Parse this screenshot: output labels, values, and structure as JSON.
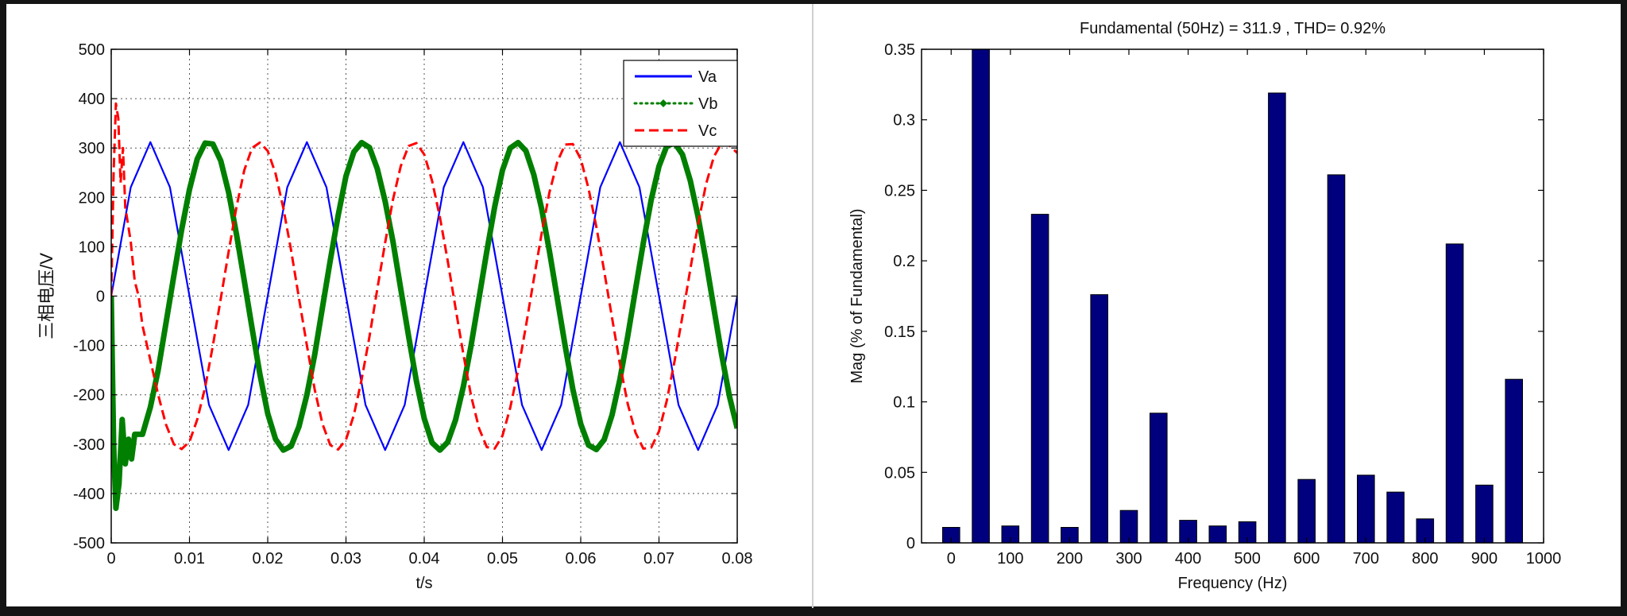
{
  "chart_data": [
    {
      "type": "line",
      "title": "",
      "xlabel": "t/s",
      "ylabel": "三相电压/V",
      "xlim": [
        0,
        0.08
      ],
      "ylim": [
        -500,
        500
      ],
      "xticks": [
        0,
        0.01,
        0.02,
        0.03,
        0.04,
        0.05,
        0.06,
        0.07,
        0.08
      ],
      "xtick_labels": [
        "0",
        "0.01",
        "0.02",
        "0.03",
        "0.04",
        "0.05",
        "0.06",
        "0.07",
        "0.08"
      ],
      "yticks": [
        -500,
        -400,
        -300,
        -200,
        -100,
        0,
        100,
        200,
        300,
        400,
        500
      ],
      "ytick_labels": [
        "-500",
        "-400",
        "-300",
        "-200",
        "-100",
        "0",
        "100",
        "200",
        "300",
        "400",
        "500"
      ],
      "grid": true,
      "legend_position": "top-right",
      "series": [
        {
          "name": "Va",
          "color": "#0000ff",
          "style": "solid",
          "x": [
            0,
            0.0025,
            0.005,
            0.0075,
            0.01,
            0.0125,
            0.015,
            0.0175,
            0.02,
            0.0225,
            0.025,
            0.0275,
            0.03,
            0.0325,
            0.035,
            0.0375,
            0.04,
            0.0425,
            0.045,
            0.0475,
            0.05,
            0.0525,
            0.055,
            0.0575,
            0.06,
            0.0625,
            0.065,
            0.0675,
            0.07,
            0.0725,
            0.075,
            0.0775,
            0.08
          ],
          "y": [
            0,
            220.5,
            311.9,
            220.5,
            0,
            -220.5,
            -311.9,
            -220.5,
            0,
            220.5,
            311.9,
            220.5,
            0,
            -220.5,
            -311.9,
            -220.5,
            0,
            220.5,
            311.9,
            220.5,
            0,
            -220.5,
            -311.9,
            -220.5,
            0,
            220.5,
            311.9,
            220.5,
            0,
            -220.5,
            -311.9,
            -220.5,
            0
          ]
        },
        {
          "name": "Vb",
          "color": "#007f00",
          "style": "dotted",
          "x": [
            0,
            0.0003,
            0.0006,
            0.001,
            0.0014,
            0.0018,
            0.0022,
            0.0026,
            0.003,
            0.004,
            0.005,
            0.006,
            0.007,
            0.008,
            0.009,
            0.01,
            0.011,
            0.012,
            0.013,
            0.014,
            0.015,
            0.016,
            0.017,
            0.018,
            0.019,
            0.02,
            0.021,
            0.022,
            0.023,
            0.024,
            0.025,
            0.026,
            0.027,
            0.028,
            0.029,
            0.03,
            0.031,
            0.032,
            0.033,
            0.034,
            0.035,
            0.036,
            0.037,
            0.038,
            0.039,
            0.04,
            0.041,
            0.042,
            0.043,
            0.044,
            0.045,
            0.046,
            0.047,
            0.048,
            0.049,
            0.05,
            0.051,
            0.052,
            0.053,
            0.054,
            0.055,
            0.056,
            0.057,
            0.058,
            0.059,
            0.06,
            0.061,
            0.062,
            0.063,
            0.064,
            0.065,
            0.066,
            0.067,
            0.068,
            0.069,
            0.07,
            0.071,
            0.072,
            0.073,
            0.074,
            0.075,
            0.076,
            0.077,
            0.078,
            0.079,
            0.08
          ],
          "y": [
            0,
            -300,
            -430,
            -380,
            -250,
            -340,
            -290,
            -330,
            -280,
            -280,
            -225,
            -150,
            -55,
            41,
            134,
            216,
            278,
            310,
            308,
            274,
            210,
            126,
            31,
            -65,
            -158,
            -238,
            -290,
            -312,
            -304,
            -264,
            -200,
            -119,
            -23,
            73,
            163,
            243,
            292,
            311,
            301,
            258,
            192,
            111,
            15,
            -81,
            -172,
            -248,
            -297,
            -312,
            -296,
            -251,
            -183,
            -99,
            -4,
            91,
            181,
            255,
            300,
            311,
            294,
            246,
            177,
            91,
            -5,
            -100,
            -189,
            -259,
            -302,
            -311,
            -291,
            -241,
            -169,
            -82,
            14,
            108,
            195,
            263,
            304,
            310,
            287,
            234,
            160,
            72,
            -24,
            -118,
            -203,
            -268
          ]
        },
        {
          "name": "Vc",
          "color": "#ff0000",
          "style": "dashed",
          "x": [
            0,
            0.0003,
            0.0006,
            0.0009,
            0.0012,
            0.0015,
            0.0018,
            0.0021,
            0.0025,
            0.003,
            0.0035,
            0.004,
            0.005,
            0.006,
            0.007,
            0.008,
            0.009,
            0.01,
            0.011,
            0.012,
            0.013,
            0.014,
            0.015,
            0.016,
            0.017,
            0.018,
            0.019,
            0.02,
            0.021,
            0.022,
            0.023,
            0.024,
            0.025,
            0.026,
            0.027,
            0.028,
            0.029,
            0.03,
            0.031,
            0.032,
            0.033,
            0.034,
            0.035,
            0.036,
            0.037,
            0.038,
            0.039,
            0.04,
            0.041,
            0.042,
            0.043,
            0.044,
            0.045,
            0.046,
            0.047,
            0.048,
            0.049,
            0.05,
            0.051,
            0.052,
            0.053,
            0.054,
            0.055,
            0.056,
            0.057,
            0.058,
            0.059,
            0.06,
            0.061,
            0.062,
            0.063,
            0.064,
            0.065,
            0.066,
            0.067,
            0.068,
            0.069,
            0.07,
            0.071,
            0.072,
            0.073,
            0.074,
            0.075,
            0.076,
            0.077,
            0.078,
            0.079,
            0.08
          ],
          "y": [
            0,
            250,
            390,
            360,
            230,
            300,
            180,
            150,
            110,
            30,
            0,
            -60,
            -130,
            -200,
            -260,
            -300,
            -310,
            -295,
            -250,
            -185,
            -100,
            -5,
            90,
            180,
            255,
            300,
            311,
            294,
            248,
            178,
            92,
            -5,
            -100,
            -189,
            -259,
            -302,
            -311,
            -291,
            -241,
            -169,
            -82,
            14,
            108,
            195,
            263,
            304,
            310,
            287,
            234,
            160,
            72,
            -24,
            -118,
            -203,
            -268,
            -306,
            -309,
            -283,
            -226,
            -150,
            -61,
            34,
            127,
            210,
            272,
            307,
            308,
            278,
            218,
            140,
            51,
            -44,
            -137,
            -218,
            -277,
            -309,
            -307,
            -274,
            -212,
            -131,
            -41,
            54,
            146,
            226,
            282,
            310,
            305,
            290
          ]
        }
      ]
    },
    {
      "type": "bar",
      "title": "Fundamental (50Hz) = 311.9 , THD= 0.92%",
      "xlabel": "Frequency (Hz)",
      "ylabel": "Mag (% of Fundamental)",
      "xlim": [
        -50,
        1000
      ],
      "ylim": [
        0,
        0.35
      ],
      "xticks": [
        0,
        100,
        200,
        300,
        400,
        500,
        600,
        700,
        800,
        900,
        1000
      ],
      "xtick_labels": [
        "0",
        "100",
        "200",
        "300",
        "400",
        "500",
        "600",
        "700",
        "800",
        "900",
        "1000"
      ],
      "yticks": [
        0,
        0.05,
        0.1,
        0.15,
        0.2,
        0.25,
        0.3,
        0.35
      ],
      "ytick_labels": [
        "0",
        "0.05",
        "0.1",
        "0.15",
        "0.2",
        "0.25",
        "0.3",
        "0.35"
      ],
      "grid": false,
      "bar_color": "#00007f",
      "categories": [
        0,
        50,
        100,
        150,
        200,
        250,
        300,
        350,
        400,
        450,
        500,
        550,
        600,
        650,
        700,
        750,
        800,
        850,
        900,
        950
      ],
      "values": [
        0.011,
        0.35,
        0.012,
        0.233,
        0.011,
        0.176,
        0.023,
        0.092,
        0.016,
        0.012,
        0.015,
        0.319,
        0.045,
        0.261,
        0.048,
        0.036,
        0.017,
        0.212,
        0.041,
        0.116
      ]
    }
  ]
}
